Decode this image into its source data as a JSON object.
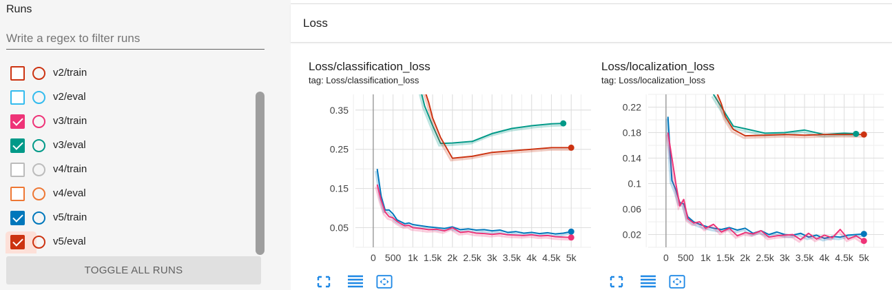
{
  "sidebar": {
    "title": "Runs",
    "filter_placeholder": "Write a regex to filter runs",
    "runs": [
      {
        "label": "v2/train",
        "color": "#cc3311",
        "checked": false
      },
      {
        "label": "v2/eval",
        "color": "#33bbee",
        "checked": false
      },
      {
        "label": "v3/train",
        "color": "#ee3377",
        "checked": true
      },
      {
        "label": "v3/eval",
        "color": "#009988",
        "checked": true
      },
      {
        "label": "v4/train",
        "color": "#bbbbbb",
        "checked": false
      },
      {
        "label": "v4/eval",
        "color": "#ee7733",
        "checked": false
      },
      {
        "label": "v5/train",
        "color": "#0077bb",
        "checked": true
      },
      {
        "label": "v5/eval",
        "color": "#cc3311",
        "checked": true
      }
    ],
    "toggle_label": "TOGGLE ALL RUNS"
  },
  "main": {
    "section_title": "Loss",
    "tool_icons": [
      "fullscreen-icon",
      "toggle-log-icon",
      "fit-domain-icon"
    ]
  },
  "chart_data": [
    {
      "type": "line",
      "title": "Loss/classification_loss",
      "subtitle": "tag: Loss/classification_loss",
      "x_ticks": [
        0,
        500,
        1000,
        1500,
        2000,
        2500,
        3000,
        3500,
        4000,
        4500,
        5000
      ],
      "x_tick_labels": [
        "0",
        "500",
        "1k",
        "1.5k",
        "2k",
        "2.5k",
        "3k",
        "3.5k",
        "4k",
        "4.5k",
        "5k"
      ],
      "y_ticks": [
        0.05,
        0.15,
        0.25,
        0.35
      ],
      "y_tick_labels": [
        "0.05",
        "0.15",
        "0.25",
        "0.35"
      ],
      "xlim": [
        -450,
        5500
      ],
      "ylim": [
        0.0,
        0.39
      ],
      "grid": true,
      "series": [
        {
          "color": "#009988",
          "x": [
            1200,
            1300,
            1500,
            1700,
            2000,
            2500,
            3000,
            3500,
            4000,
            4500,
            4800
          ],
          "y": [
            0.4,
            0.36,
            0.31,
            0.265,
            0.266,
            0.27,
            0.29,
            0.303,
            0.31,
            0.315,
            0.316
          ]
        },
        {
          "color": "#cc3311",
          "x": [
            1300,
            1400,
            1500,
            1700,
            2000,
            2500,
            3000,
            3500,
            4000,
            4500,
            5000
          ],
          "y": [
            0.4,
            0.37,
            0.33,
            0.28,
            0.227,
            0.232,
            0.242,
            0.246,
            0.25,
            0.254,
            0.254
          ]
        },
        {
          "color": "#0077bb",
          "x": [
            100,
            200,
            300,
            400,
            500,
            600,
            700,
            800,
            900,
            1000,
            1200,
            1400,
            1600,
            1800,
            2000,
            2200,
            2400,
            2600,
            2800,
            3000,
            3200,
            3400,
            3600,
            3800,
            4000,
            4200,
            4400,
            4600,
            4800,
            5000
          ],
          "y": [
            0.2,
            0.13,
            0.095,
            0.095,
            0.085,
            0.07,
            0.065,
            0.06,
            0.062,
            0.058,
            0.055,
            0.052,
            0.05,
            0.048,
            0.052,
            0.045,
            0.047,
            0.044,
            0.045,
            0.042,
            0.044,
            0.038,
            0.04,
            0.036,
            0.038,
            0.035,
            0.037,
            0.034,
            0.036,
            0.04
          ]
        },
        {
          "color": "#ee3377",
          "x": [
            100,
            200,
            300,
            400,
            500,
            600,
            700,
            800,
            900,
            1000,
            1200,
            1400,
            1600,
            1800,
            2000,
            2200,
            2400,
            2600,
            2800,
            3000,
            3200,
            3400,
            3600,
            3800,
            4000,
            4200,
            4400,
            4600,
            4800,
            5000
          ],
          "y": [
            0.16,
            0.12,
            0.09,
            0.078,
            0.075,
            0.066,
            0.06,
            0.055,
            0.056,
            0.05,
            0.048,
            0.045,
            0.046,
            0.042,
            0.05,
            0.038,
            0.04,
            0.036,
            0.035,
            0.033,
            0.035,
            0.032,
            0.031,
            0.03,
            0.032,
            0.029,
            0.03,
            0.027,
            0.026,
            0.025
          ]
        }
      ]
    },
    {
      "type": "line",
      "title": "Loss/localization_loss",
      "subtitle": "tag: Loss/localization_loss",
      "x_ticks": [
        0,
        500,
        1000,
        1500,
        2000,
        2500,
        3000,
        3500,
        4000,
        4500,
        5000
      ],
      "x_tick_labels": [
        "0",
        "500",
        "1k",
        "1.5k",
        "2k",
        "2.5k",
        "3k",
        "3.5k",
        "4k",
        "4.5k",
        "5k"
      ],
      "y_ticks": [
        0.02,
        0.06,
        0.1,
        0.14,
        0.18,
        0.22
      ],
      "y_tick_labels": [
        "0.02",
        "0.06",
        "0.1",
        "0.14",
        "0.18",
        "0.22"
      ],
      "xlim": [
        -450,
        5500
      ],
      "ylim": [
        0.0,
        0.24
      ],
      "grid": true,
      "series": [
        {
          "color": "#009988",
          "x": [
            1200,
            1300,
            1500,
            1700,
            2000,
            2500,
            3000,
            3500,
            4000,
            4500,
            4800
          ],
          "y": [
            0.24,
            0.23,
            0.21,
            0.19,
            0.186,
            0.179,
            0.18,
            0.184,
            0.177,
            0.179,
            0.178
          ]
        },
        {
          "color": "#cc3311",
          "x": [
            1300,
            1400,
            1500,
            1700,
            2000,
            2500,
            3000,
            3500,
            4000,
            4500,
            5000
          ],
          "y": [
            0.24,
            0.225,
            0.205,
            0.185,
            0.175,
            0.176,
            0.177,
            0.176,
            0.177,
            0.177,
            0.177
          ]
        },
        {
          "color": "#0077bb",
          "x": [
            50,
            150,
            250,
            350,
            450,
            550,
            700,
            850,
            1000,
            1200,
            1400,
            1600,
            1800,
            2000,
            2200,
            2400,
            2600,
            2800,
            3000,
            3200,
            3400,
            3600,
            3800,
            4000,
            4200,
            4400,
            4600,
            4800,
            5000
          ],
          "y": [
            0.205,
            0.105,
            0.09,
            0.07,
            0.068,
            0.048,
            0.04,
            0.036,
            0.033,
            0.03,
            0.028,
            0.031,
            0.027,
            0.03,
            0.022,
            0.026,
            0.02,
            0.024,
            0.02,
            0.019,
            0.022,
            0.016,
            0.019,
            0.014,
            0.017,
            0.016,
            0.019,
            0.02,
            0.021
          ]
        },
        {
          "color": "#ee3377",
          "x": [
            50,
            150,
            250,
            350,
            450,
            550,
            700,
            850,
            1000,
            1200,
            1400,
            1600,
            1800,
            2000,
            2200,
            2400,
            2600,
            2800,
            3000,
            3200,
            3400,
            3600,
            3800,
            4000,
            4200,
            4400,
            4600,
            4800,
            5000
          ],
          "y": [
            0.18,
            0.14,
            0.1,
            0.065,
            0.075,
            0.045,
            0.038,
            0.04,
            0.03,
            0.036,
            0.024,
            0.03,
            0.018,
            0.023,
            0.021,
            0.026,
            0.016,
            0.018,
            0.019,
            0.02,
            0.012,
            0.022,
            0.013,
            0.019,
            0.015,
            0.028,
            0.013,
            0.018,
            0.01
          ]
        }
      ]
    }
  ]
}
